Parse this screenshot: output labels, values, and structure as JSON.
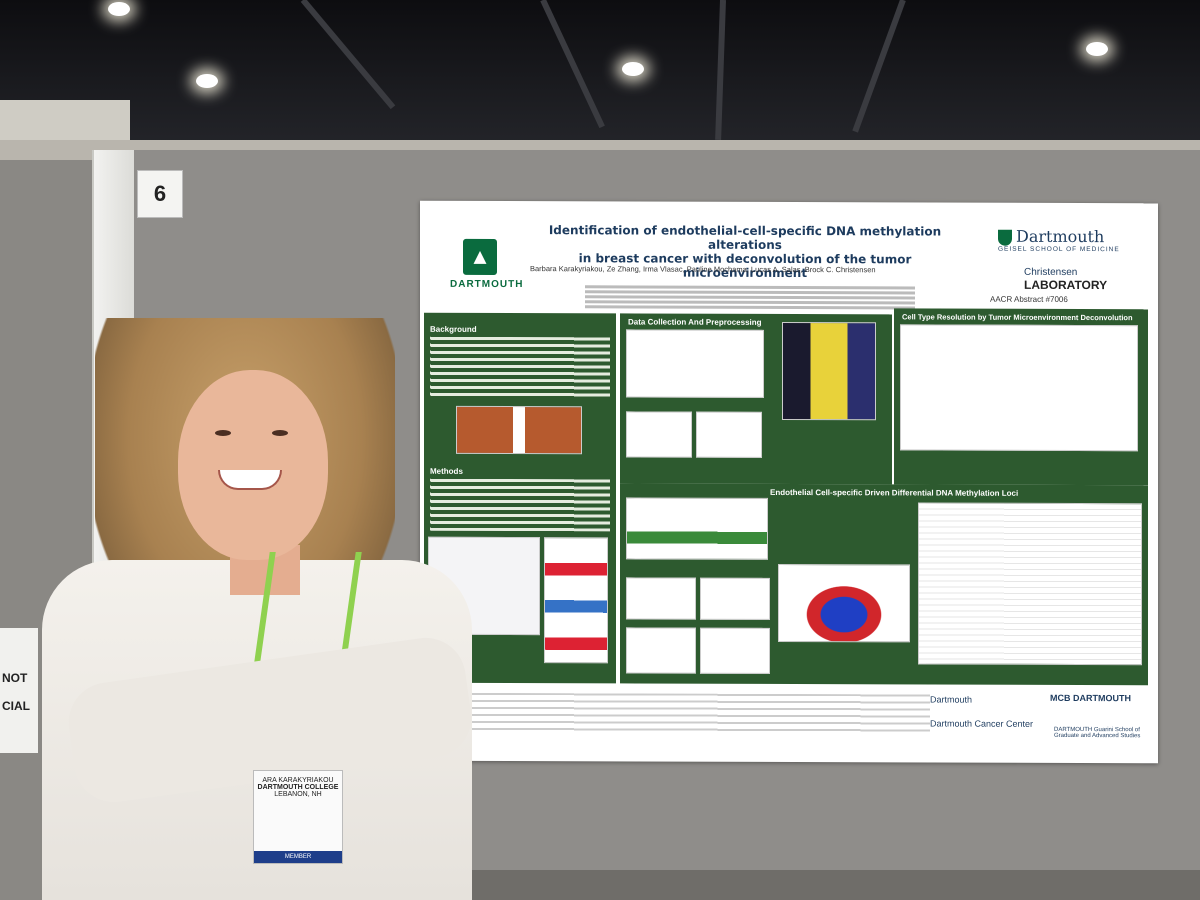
{
  "booth": {
    "number": "6",
    "side_sign_lines": [
      "NOT",
      "CIAL"
    ]
  },
  "poster": {
    "title_line1": "Identification of endothelial-cell-specific DNA methylation alterations",
    "title_line2": "in breast cancer with deconvolution of the tumor microenvironment",
    "authors": "Barbara Karakyriakou, Ze Zhang, Irma Vlasac, Pauline Mochama, Lucas A. Salas, Brock C. Christensen",
    "left_logo_text": "DARTMOUTH",
    "geisel_big": "Dartmouth",
    "geisel_small": "GEISEL SCHOOL OF MEDICINE",
    "lab_line1": "Christensen",
    "lab_line2": "LABORATORY",
    "abstract": "AACR Abstract #7006",
    "sections": {
      "background": "Background",
      "methods": "Methods",
      "data_collection": "Data Collection And Preprocessing",
      "cell_type": "Cell Type Resolution by Tumor Microenvironment Deconvolution",
      "endothelial": "Endothelial Cell-specific Driven Differential DNA Methylation Loci"
    },
    "footer_logos": [
      "Dartmouth",
      "MCB DARTMOUTH",
      "Dartmouth Cancer Center",
      "DARTMOUTH Guarini School of Graduate and Advanced Studies"
    ]
  },
  "badge": {
    "lines": [
      "ARA KARAKYRIAKOU",
      "DARTMOUTH COLLEGE",
      "LEBANON, NH"
    ],
    "footer": "MEMBER"
  }
}
